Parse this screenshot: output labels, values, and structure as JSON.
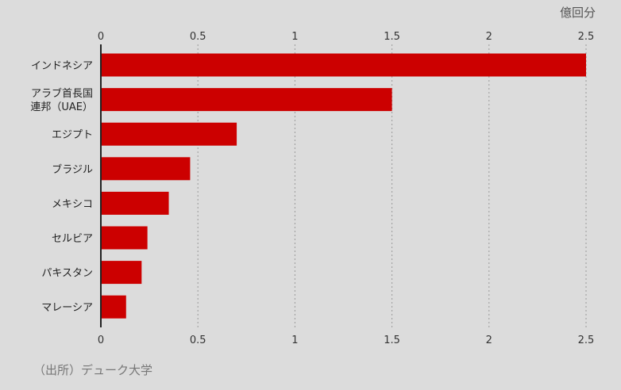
{
  "unit_label": "億回分",
  "source": "（出所）デューク大学",
  "colors": {
    "bar": "#cc0000",
    "background": "#dcdcdc",
    "grid": "#9a9a9a",
    "axis": "#222222"
  },
  "chart_data": {
    "type": "bar",
    "orientation": "horizontal",
    "categories": [
      [
        "インドネシア"
      ],
      [
        "アラブ首長国",
        "連邦（UAE）"
      ],
      [
        "エジプト"
      ],
      [
        "ブラジル"
      ],
      [
        "メキシコ"
      ],
      [
        "セルビア"
      ],
      [
        "パキスタン"
      ],
      [
        "マレーシア"
      ]
    ],
    "values": [
      2.5,
      1.5,
      0.7,
      0.46,
      0.35,
      0.24,
      0.21,
      0.13
    ],
    "xlim": [
      0,
      2.5
    ],
    "xticks": [
      0,
      0.5,
      1,
      1.5,
      2,
      2.5
    ],
    "tick_labels": [
      "0",
      "0.5",
      "1",
      "1.5",
      "2",
      "2.5"
    ],
    "grid": true,
    "tick_labels_top_and_bottom": true
  }
}
